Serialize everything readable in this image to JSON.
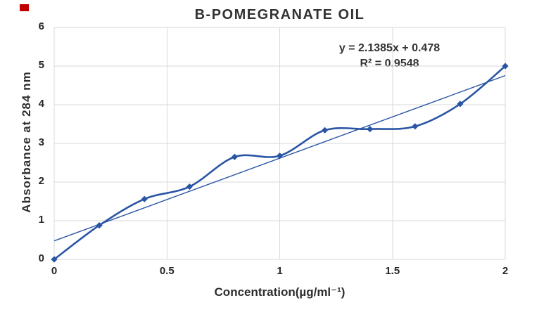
{
  "figure": {
    "red_marker_color": "#c00000"
  },
  "chart_data": {
    "type": "scatter",
    "title": "B-POMEGRANATE OIL",
    "xlabel": "Concentration(µg/ml⁻¹)",
    "ylabel": "Absorbance  at 284 nm",
    "x": [
      0,
      0.2,
      0.4,
      0.6,
      0.8,
      1,
      1.2,
      1.4,
      1.6,
      1.8,
      2
    ],
    "series": [
      {
        "values": [
          0,
          0.88,
          1.56,
          1.88,
          2.65,
          2.68,
          3.34,
          3.37,
          3.44,
          4.02,
          5
        ]
      }
    ],
    "trendline": {
      "slope": 2.1385,
      "intercept": 0.478,
      "r_squared": 0.9548,
      "equation_label": "y = 2.1385x + 0.478",
      "r2_label": "R² = 0.9548"
    },
    "xlim": [
      0,
      2
    ],
    "ylim": [
      0,
      6
    ],
    "x_ticks": [
      "0",
      "0.5",
      "1",
      "1.5",
      "2"
    ],
    "y_ticks": [
      "0",
      "1",
      "2",
      "3",
      "4",
      "5",
      "6"
    ],
    "grid": true,
    "legend_position": "none",
    "marker": "diamond",
    "line_style": "smooth",
    "colors": {
      "series": "#2a55a5",
      "trendline": "#2a55a5",
      "gridline": "#d9d9d9",
      "text": "#2e2e2e"
    }
  }
}
